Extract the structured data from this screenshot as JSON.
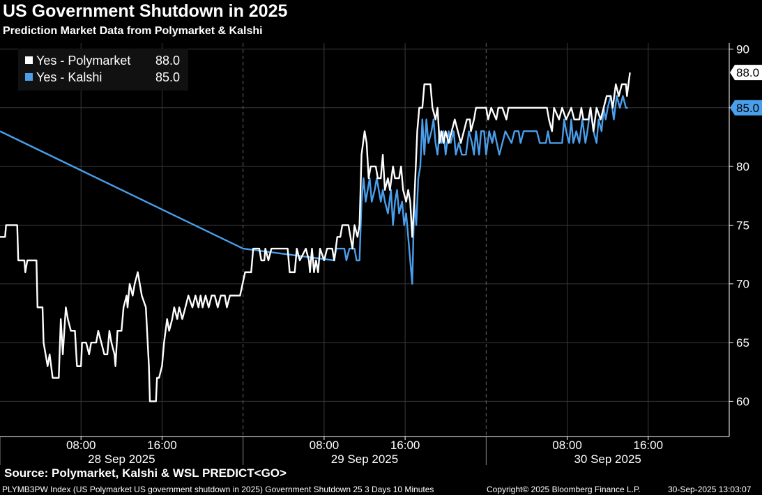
{
  "header": {
    "title": "US Government Shutdown in 2025",
    "subtitle": "Prediction Market Data from Polymarket & Kalshi"
  },
  "footer": {
    "source": "Source: Polymarket, Kalshi & WSL PREDICT<GO>",
    "index_text": "PLYMB3PW Index (US Polymarket US government shutdown in 2025) Government Shutdown 25 3 Days 10 Minutes",
    "copyright": "Copyright© 2025 Bloomberg Finance L.P.",
    "timestamp": "30-Sep-2025 13:03:07"
  },
  "colors": {
    "polymarket": "#ffffff",
    "kalshi": "#4a9eea",
    "background": "#000000",
    "grid": "#3a3a3a"
  },
  "chart_data": {
    "type": "line",
    "title": "US Government Shutdown in 2025",
    "subtitle": "Prediction Market Data from Polymarket & Kalshi",
    "x_unit": "hours since 00:00 28 Sep 2025",
    "xlim": [
      0,
      72
    ],
    "ylim": [
      57,
      90.5
    ],
    "y_ticks": [
      60,
      65,
      70,
      75,
      80,
      85,
      90
    ],
    "y_tick_labels": [
      "60",
      "65",
      "70",
      "75",
      "80",
      "85",
      "90"
    ],
    "x_ticks": [
      {
        "x": 8,
        "label": "08:00"
      },
      {
        "x": 16,
        "label": "16:00"
      },
      {
        "x": 32,
        "label": "08:00"
      },
      {
        "x": 40,
        "label": "16:00"
      },
      {
        "x": 56,
        "label": "08:00"
      },
      {
        "x": 64,
        "label": "16:00"
      }
    ],
    "day_labels": [
      {
        "x": 12,
        "label": "28 Sep 2025"
      },
      {
        "x": 36,
        "label": "29 Sep 2025"
      },
      {
        "x": 60,
        "label": "30 Sep 2025"
      }
    ],
    "day_dividers": [
      24,
      48
    ],
    "legend_position": "top-left",
    "grid": true,
    "series": [
      {
        "name": "Yes - Polymarket",
        "last_value": "88.0",
        "last_label": "88.0",
        "points": [
          [
            0,
            74
          ],
          [
            0.5,
            74
          ],
          [
            0.6,
            75
          ],
          [
            1.7,
            75
          ],
          [
            1.8,
            72
          ],
          [
            2.4,
            72
          ],
          [
            2.5,
            71
          ],
          [
            2.7,
            72
          ],
          [
            3.6,
            72
          ],
          [
            3.7,
            68
          ],
          [
            4.2,
            68
          ],
          [
            4.3,
            65
          ],
          [
            4.7,
            63
          ],
          [
            4.9,
            64
          ],
          [
            5.2,
            62
          ],
          [
            5.8,
            62
          ],
          [
            6,
            67
          ],
          [
            6.2,
            64
          ],
          [
            6.5,
            68
          ],
          [
            6.7,
            67
          ],
          [
            7,
            66
          ],
          [
            7.4,
            66
          ],
          [
            7.6,
            63
          ],
          [
            8,
            63
          ],
          [
            8.1,
            65
          ],
          [
            8.5,
            65
          ],
          [
            8.8,
            64
          ],
          [
            9,
            65
          ],
          [
            9.5,
            65
          ],
          [
            9.7,
            66
          ],
          [
            10,
            65
          ],
          [
            10.3,
            64
          ],
          [
            10.6,
            64
          ],
          [
            10.8,
            66
          ],
          [
            11,
            65
          ],
          [
            11.3,
            64
          ],
          [
            11.4,
            63
          ],
          [
            11.6,
            66
          ],
          [
            12,
            66
          ],
          [
            12.2,
            68
          ],
          [
            12.5,
            69
          ],
          [
            12.6,
            68
          ],
          [
            12.8,
            70
          ],
          [
            13.1,
            69
          ],
          [
            13.3,
            70
          ],
          [
            13.6,
            71
          ],
          [
            13.8,
            70
          ],
          [
            14,
            69
          ],
          [
            14.4,
            68
          ],
          [
            14.7,
            63
          ],
          [
            14.8,
            60
          ],
          [
            15.4,
            60
          ],
          [
            15.5,
            62
          ],
          [
            15.7,
            62
          ],
          [
            16,
            63
          ],
          [
            16.2,
            65
          ],
          [
            16.5,
            67
          ],
          [
            16.7,
            66
          ],
          [
            17,
            67
          ],
          [
            17.2,
            68
          ],
          [
            17.5,
            67
          ],
          [
            17.7,
            68
          ],
          [
            18,
            67
          ],
          [
            18.3,
            68
          ],
          [
            18.6,
            69
          ],
          [
            19,
            68
          ],
          [
            19.3,
            69
          ],
          [
            19.6,
            68
          ],
          [
            19.8,
            69
          ],
          [
            20,
            68
          ],
          [
            20.3,
            69
          ],
          [
            20.6,
            68
          ],
          [
            20.9,
            69
          ],
          [
            21.2,
            69
          ],
          [
            21.5,
            68
          ],
          [
            21.8,
            69
          ],
          [
            22.2,
            69
          ],
          [
            22.4,
            68
          ],
          [
            22.7,
            69
          ],
          [
            23.4,
            69
          ],
          [
            23.7,
            69
          ],
          [
            24.2,
            71
          ],
          [
            24.8,
            71
          ],
          [
            25,
            73
          ],
          [
            25.6,
            73
          ],
          [
            25.8,
            72
          ],
          [
            26.1,
            72
          ],
          [
            26.2,
            73
          ],
          [
            26.5,
            72
          ],
          [
            26.8,
            73
          ],
          [
            28.4,
            73
          ],
          [
            28.6,
            71
          ],
          [
            29.1,
            71
          ],
          [
            29.3,
            73
          ],
          [
            29.6,
            72
          ],
          [
            30.2,
            73
          ],
          [
            30.5,
            72
          ],
          [
            30.6,
            71
          ],
          [
            30.8,
            73
          ],
          [
            31,
            71
          ],
          [
            31.2,
            72
          ],
          [
            31.4,
            71
          ],
          [
            31.6,
            73
          ],
          [
            32,
            72
          ],
          [
            32.3,
            73
          ],
          [
            32.8,
            73
          ],
          [
            33,
            72
          ],
          [
            33.3,
            74
          ],
          [
            33.6,
            74
          ],
          [
            33.8,
            75
          ],
          [
            34.4,
            75
          ],
          [
            34.6,
            74
          ],
          [
            34.8,
            73
          ],
          [
            35,
            75
          ],
          [
            35.3,
            74
          ],
          [
            35.5,
            75
          ],
          [
            35.7,
            81
          ],
          [
            36,
            83
          ],
          [
            36.2,
            82
          ],
          [
            36.4,
            79
          ],
          [
            36.6,
            80
          ],
          [
            37.1,
            80
          ],
          [
            37.3,
            79
          ],
          [
            37.6,
            79
          ],
          [
            37.8,
            81
          ],
          [
            38,
            78
          ],
          [
            38.3,
            79
          ],
          [
            38.5,
            78
          ],
          [
            38.8,
            80
          ],
          [
            39,
            79
          ],
          [
            39.4,
            79
          ],
          [
            39.6,
            80
          ],
          [
            39.8,
            78
          ],
          [
            40.1,
            77
          ],
          [
            40.3,
            78
          ],
          [
            40.5,
            77
          ],
          [
            40.7,
            74
          ],
          [
            40.9,
            77
          ],
          [
            41.1,
            81
          ],
          [
            41.2,
            83
          ],
          [
            41.4,
            85
          ],
          [
            41.7,
            85
          ],
          [
            41.9,
            87
          ],
          [
            42.5,
            87
          ],
          [
            42.7,
            85
          ],
          [
            43,
            84
          ],
          [
            43.2,
            85
          ],
          [
            43.4,
            82
          ],
          [
            43.6,
            83
          ],
          [
            43.8,
            82
          ],
          [
            44,
            83
          ],
          [
            44.3,
            82
          ],
          [
            44.6,
            83
          ],
          [
            44.9,
            84
          ],
          [
            45.2,
            83
          ],
          [
            45.5,
            82
          ],
          [
            45.8,
            83
          ],
          [
            46.1,
            84
          ],
          [
            46.4,
            84
          ],
          [
            46.5,
            83
          ],
          [
            46.8,
            84
          ],
          [
            47,
            85
          ],
          [
            48,
            85
          ],
          [
            48.2,
            84
          ],
          [
            48.5,
            85
          ],
          [
            49,
            84
          ],
          [
            49.2,
            85
          ],
          [
            49.6,
            85
          ],
          [
            50,
            84
          ],
          [
            50.2,
            85
          ],
          [
            54,
            85
          ],
          [
            54.2,
            84
          ],
          [
            54.5,
            83
          ],
          [
            54.7,
            85
          ],
          [
            55.2,
            84
          ],
          [
            55.5,
            85
          ],
          [
            55.9,
            84
          ],
          [
            56.4,
            85
          ],
          [
            56.7,
            84
          ],
          [
            57.2,
            84
          ],
          [
            57.4,
            85
          ],
          [
            57.6,
            84
          ],
          [
            58.1,
            84
          ],
          [
            58.3,
            85
          ],
          [
            58.6,
            83
          ],
          [
            58.9,
            85
          ],
          [
            59.3,
            84
          ],
          [
            59.6,
            85
          ],
          [
            59.9,
            86
          ],
          [
            60.3,
            86
          ],
          [
            60.5,
            85
          ],
          [
            60.8,
            87
          ],
          [
            61.1,
            86
          ],
          [
            61.4,
            87
          ],
          [
            61.8,
            87
          ],
          [
            61.9,
            86
          ],
          [
            62.2,
            88
          ]
        ]
      },
      {
        "name": "Yes - Kalshi",
        "last_value": "85.0",
        "last_label": "85.0",
        "points": [
          [
            0,
            83
          ],
          [
            24,
            73
          ],
          [
            33,
            72
          ],
          [
            33.2,
            73
          ],
          [
            34,
            73
          ],
          [
            34.2,
            72
          ],
          [
            34.5,
            73
          ],
          [
            35,
            73
          ],
          [
            35.2,
            72
          ],
          [
            35.5,
            72
          ],
          [
            35.7,
            77
          ],
          [
            35.9,
            79
          ],
          [
            36.1,
            77
          ],
          [
            36.3,
            78
          ],
          [
            36.5,
            79
          ],
          [
            36.7,
            77
          ],
          [
            37,
            78
          ],
          [
            37.2,
            79
          ],
          [
            37.4,
            78
          ],
          [
            37.6,
            77
          ],
          [
            37.8,
            78
          ],
          [
            38,
            77
          ],
          [
            38.3,
            76
          ],
          [
            38.6,
            78
          ],
          [
            38.8,
            75
          ],
          [
            39,
            77
          ],
          [
            39.2,
            78
          ],
          [
            39.4,
            76
          ],
          [
            39.7,
            77
          ],
          [
            39.9,
            75
          ],
          [
            40.1,
            76
          ],
          [
            40.3,
            74
          ],
          [
            40.5,
            72
          ],
          [
            40.7,
            70
          ],
          [
            40.9,
            77
          ],
          [
            41.1,
            75
          ],
          [
            41.3,
            79
          ],
          [
            41.5,
            80
          ],
          [
            41.7,
            84
          ],
          [
            41.9,
            81
          ],
          [
            42.1,
            84
          ],
          [
            42.3,
            82
          ],
          [
            42.6,
            83
          ],
          [
            42.8,
            84
          ],
          [
            43,
            82
          ],
          [
            43.2,
            81
          ],
          [
            43.4,
            83
          ],
          [
            43.6,
            82
          ],
          [
            43.8,
            83
          ],
          [
            44,
            81
          ],
          [
            44.3,
            83
          ],
          [
            44.5,
            82
          ],
          [
            44.8,
            83
          ],
          [
            45,
            81
          ],
          [
            45.3,
            82
          ],
          [
            45.6,
            81
          ],
          [
            46,
            81
          ],
          [
            46.3,
            83
          ],
          [
            46.6,
            82
          ],
          [
            46.8,
            81
          ],
          [
            47,
            83
          ],
          [
            47.3,
            81
          ],
          [
            47.5,
            83
          ],
          [
            47.8,
            83
          ],
          [
            48,
            81
          ],
          [
            48.3,
            83
          ],
          [
            48.6,
            82
          ],
          [
            48.8,
            83
          ],
          [
            49.3,
            81
          ],
          [
            49.6,
            82
          ],
          [
            49.9,
            83
          ],
          [
            50.5,
            82
          ],
          [
            50.8,
            83
          ],
          [
            51.2,
            83
          ],
          [
            51.4,
            82
          ],
          [
            51.7,
            83
          ],
          [
            53,
            83
          ],
          [
            53.3,
            82
          ],
          [
            53.9,
            82
          ],
          [
            54.1,
            83
          ],
          [
            54.3,
            82
          ],
          [
            55.5,
            82
          ],
          [
            55.7,
            84
          ],
          [
            55.9,
            83
          ],
          [
            56.2,
            82
          ],
          [
            56.4,
            84
          ],
          [
            56.6,
            82
          ],
          [
            56.9,
            83
          ],
          [
            57.2,
            82
          ],
          [
            57.5,
            84
          ],
          [
            57.8,
            82
          ],
          [
            58,
            83
          ],
          [
            58.3,
            85
          ],
          [
            58.6,
            83
          ],
          [
            58.9,
            82
          ],
          [
            59.1,
            84
          ],
          [
            59.4,
            83
          ],
          [
            59.6,
            85
          ],
          [
            59.8,
            84
          ],
          [
            60,
            85
          ],
          [
            60.3,
            86
          ],
          [
            60.6,
            84
          ],
          [
            60.9,
            86
          ],
          [
            61.2,
            85
          ],
          [
            61.5,
            86
          ],
          [
            61.8,
            85
          ],
          [
            62,
            85
          ]
        ]
      }
    ]
  }
}
